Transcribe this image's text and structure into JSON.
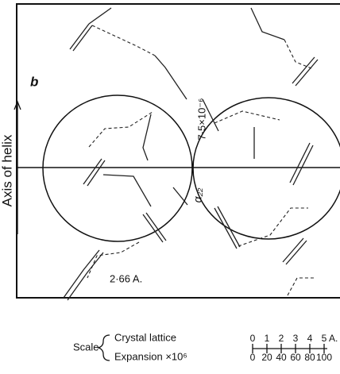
{
  "labels": {
    "axis_letter": "b",
    "axis_name": "Axis of helix",
    "expansion_value": "7·5×10⁻⁶",
    "coefficient": "α₂₂",
    "bond_length": "2·66 A."
  },
  "scale": {
    "title": "Scale",
    "crystal": {
      "label": "Crystal lattice",
      "ticks": [
        "0",
        "1",
        "2",
        "3",
        "4",
        "5"
      ],
      "unit": "A."
    },
    "expansion": {
      "label": "Expansion ×10⁶",
      "ticks": [
        "0",
        "20",
        "40",
        "60",
        "80",
        "100"
      ]
    }
  }
}
